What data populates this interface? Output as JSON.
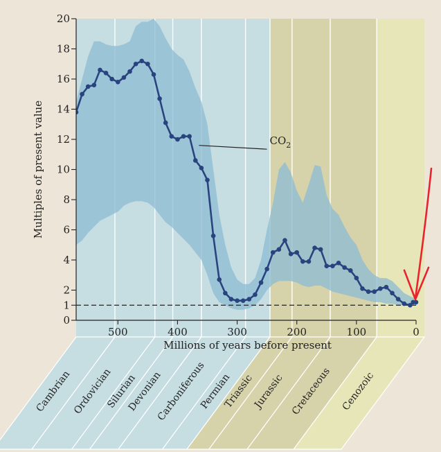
{
  "chart_data": {
    "type": "line",
    "title": "",
    "xlabel": "Millions of years before present",
    "ylabel": "Multiples of present value",
    "xlim": [
      570,
      0
    ],
    "ylim": [
      0,
      20
    ],
    "x_ticks": [
      500,
      400,
      300,
      200,
      100,
      0
    ],
    "y_ticks": [
      0,
      1,
      2,
      4,
      6,
      8,
      10,
      12,
      14,
      16,
      18,
      20
    ],
    "grid": false,
    "series": [
      {
        "name": "CO2",
        "label_parts": [
          "CO",
          "2"
        ],
        "x": [
          570,
          560,
          550,
          540,
          530,
          520,
          510,
          500,
          490,
          480,
          470,
          460,
          450,
          440,
          430,
          420,
          410,
          400,
          390,
          380,
          370,
          360,
          350,
          340,
          330,
          320,
          310,
          300,
          290,
          280,
          270,
          260,
          250,
          240,
          230,
          220,
          210,
          200,
          190,
          180,
          170,
          160,
          150,
          140,
          130,
          120,
          110,
          100,
          90,
          80,
          70,
          60,
          50,
          40,
          30,
          20,
          10,
          5,
          0
        ],
        "y": [
          13.8,
          15.0,
          15.5,
          15.6,
          16.6,
          16.4,
          16.0,
          15.8,
          16.1,
          16.5,
          17.0,
          17.2,
          17.0,
          16.3,
          14.7,
          13.1,
          12.2,
          12.0,
          12.2,
          12.2,
          10.6,
          10.1,
          9.3,
          5.6,
          2.7,
          1.8,
          1.4,
          1.3,
          1.3,
          1.4,
          1.7,
          2.5,
          3.4,
          4.5,
          4.7,
          5.3,
          4.4,
          4.5,
          3.9,
          3.9,
          4.8,
          4.7,
          3.6,
          3.6,
          3.8,
          3.5,
          3.3,
          2.8,
          2.1,
          1.9,
          1.9,
          2.1,
          2.2,
          1.8,
          1.4,
          1.1,
          1.0,
          1.2,
          1.2
        ]
      }
    ],
    "uncertainty_band": {
      "x": [
        570,
        560,
        550,
        540,
        530,
        520,
        510,
        500,
        490,
        480,
        470,
        460,
        450,
        440,
        430,
        420,
        410,
        400,
        390,
        380,
        370,
        360,
        350,
        340,
        330,
        320,
        310,
        300,
        290,
        280,
        270,
        260,
        250,
        240,
        230,
        220,
        210,
        200,
        190,
        180,
        170,
        160,
        150,
        140,
        130,
        120,
        110,
        100,
        90,
        80,
        70,
        60,
        50,
        40,
        30,
        20,
        10,
        0
      ],
      "upper": [
        14.5,
        16.0,
        17.5,
        18.5,
        18.5,
        18.3,
        18.2,
        18.2,
        18.3,
        18.5,
        19.5,
        19.8,
        19.8,
        20.0,
        19.5,
        18.7,
        18.0,
        17.6,
        17.3,
        16.5,
        15.4,
        14.5,
        13.0,
        10.0,
        7.0,
        5.0,
        3.5,
        2.7,
        2.4,
        2.4,
        2.8,
        4.0,
        6.0,
        7.8,
        10.0,
        10.5,
        9.8,
        8.6,
        7.8,
        9.0,
        10.3,
        10.2,
        8.3,
        7.4,
        7.0,
        6.2,
        5.5,
        5.0,
        4.0,
        3.4,
        3.0,
        2.8,
        2.8,
        2.6,
        2.2,
        1.8,
        1.6,
        1.4
      ],
      "lower": [
        5.0,
        5.3,
        5.8,
        6.2,
        6.6,
        6.8,
        7.0,
        7.2,
        7.6,
        7.8,
        7.9,
        7.9,
        7.8,
        7.5,
        7.0,
        6.5,
        6.2,
        5.8,
        5.4,
        5.0,
        4.5,
        4.0,
        3.0,
        1.8,
        1.2,
        1.0,
        0.8,
        0.7,
        0.7,
        0.8,
        1.0,
        1.4,
        2.0,
        2.4,
        2.6,
        2.6,
        2.6,
        2.5,
        2.3,
        2.2,
        2.3,
        2.3,
        2.1,
        1.9,
        1.8,
        1.7,
        1.6,
        1.5,
        1.4,
        1.3,
        1.2,
        1.2,
        1.1,
        1.1,
        1.0,
        1.0,
        1.0,
        1.0
      ]
    },
    "reference_line": {
      "y": 1,
      "style": "dashed"
    },
    "periods": [
      {
        "name": "Cambrian",
        "start": 570,
        "end": 505,
        "shade": "blue"
      },
      {
        "name": "Ordovician",
        "start": 505,
        "end": 438,
        "shade": "blue"
      },
      {
        "name": "Silurian",
        "start": 438,
        "end": 408,
        "shade": "blue"
      },
      {
        "name": "Devonian",
        "start": 408,
        "end": 360,
        "shade": "blue"
      },
      {
        "name": "Carboniferous",
        "start": 360,
        "end": 286,
        "shade": "blue"
      },
      {
        "name": "Permian",
        "start": 286,
        "end": 245,
        "shade": "blue"
      },
      {
        "name": "Triassic",
        "start": 245,
        "end": 208,
        "shade": "olive"
      },
      {
        "name": "Jurassic",
        "start": 208,
        "end": 144,
        "shade": "olive"
      },
      {
        "name": "Cretaceous",
        "start": 144,
        "end": 66,
        "shade": "olive"
      },
      {
        "name": "Cenozoic",
        "start": 66,
        "end": 0,
        "shade": "yellow"
      }
    ],
    "colors": {
      "paleozoic_bg": "#c6dde2",
      "mesozoic_bg": "#d6d2aa",
      "cenozoic_bg": "#e7e6b8",
      "band": "#8fbcd3",
      "line": "#28437e",
      "annotation_arrow": "#e8232e"
    },
    "annotations": [
      {
        "type": "arrow",
        "target_x": 0,
        "target_y": 1.2,
        "color": "red"
      }
    ]
  }
}
